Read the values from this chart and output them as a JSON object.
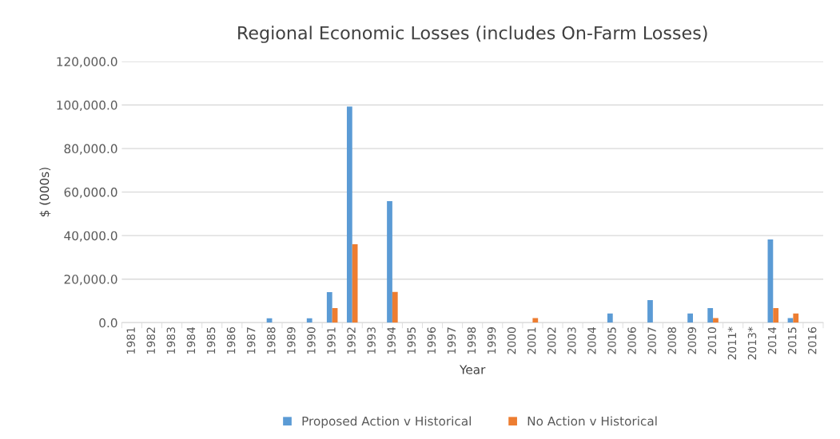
{
  "chart_data": {
    "type": "bar",
    "title": "Regional Economic Losses (includes On-Farm Losses)",
    "xlabel": "Year",
    "ylabel": "$ (000s)",
    "categories": [
      "1981",
      "1982",
      "1983",
      "1984",
      "1985",
      "1986",
      "1987",
      "1988",
      "1989",
      "1990",
      "1991",
      "1992",
      "1993",
      "1994",
      "1995",
      "1996",
      "1997",
      "1998",
      "1999",
      "2000",
      "2001",
      "2002",
      "2003",
      "2004",
      "2005",
      "2006",
      "2007",
      "2008",
      "2009",
      "2010",
      "2011*",
      "2013*",
      "2014",
      "2015",
      "2016"
    ],
    "series": [
      {
        "name": "Proposed Action v Historical",
        "color": "#5b9bd5",
        "values": [
          0,
          0,
          0,
          0,
          0,
          0,
          0,
          2000,
          0,
          2000,
          14000,
          99300,
          0,
          55800,
          0,
          0,
          0,
          0,
          0,
          0,
          0,
          0,
          0,
          0,
          4200,
          0,
          10400,
          0,
          4200,
          6700,
          0,
          0,
          38200,
          2100,
          0
        ]
      },
      {
        "name": "No Action v Historical",
        "color": "#ed7d31",
        "values": [
          0,
          0,
          0,
          0,
          0,
          0,
          0,
          0,
          0,
          0,
          6700,
          36000,
          0,
          14100,
          0,
          0,
          0,
          0,
          0,
          0,
          2100,
          0,
          0,
          0,
          0,
          0,
          0,
          0,
          0,
          2100,
          0,
          0,
          6700,
          4200,
          0
        ]
      }
    ],
    "ylim": [
      0,
      120000
    ],
    "yticks": [
      {
        "value": 0,
        "label": "0.0"
      },
      {
        "value": 20000,
        "label": "20,000.0"
      },
      {
        "value": 40000,
        "label": "40,000.0"
      },
      {
        "value": 60000,
        "label": "60,000.0"
      },
      {
        "value": 80000,
        "label": "80,000.0"
      },
      {
        "value": 100000,
        "label": "100,000.0"
      },
      {
        "value": 120000,
        "label": "120,000.0"
      }
    ],
    "grid": "y",
    "legend": "bottom"
  }
}
